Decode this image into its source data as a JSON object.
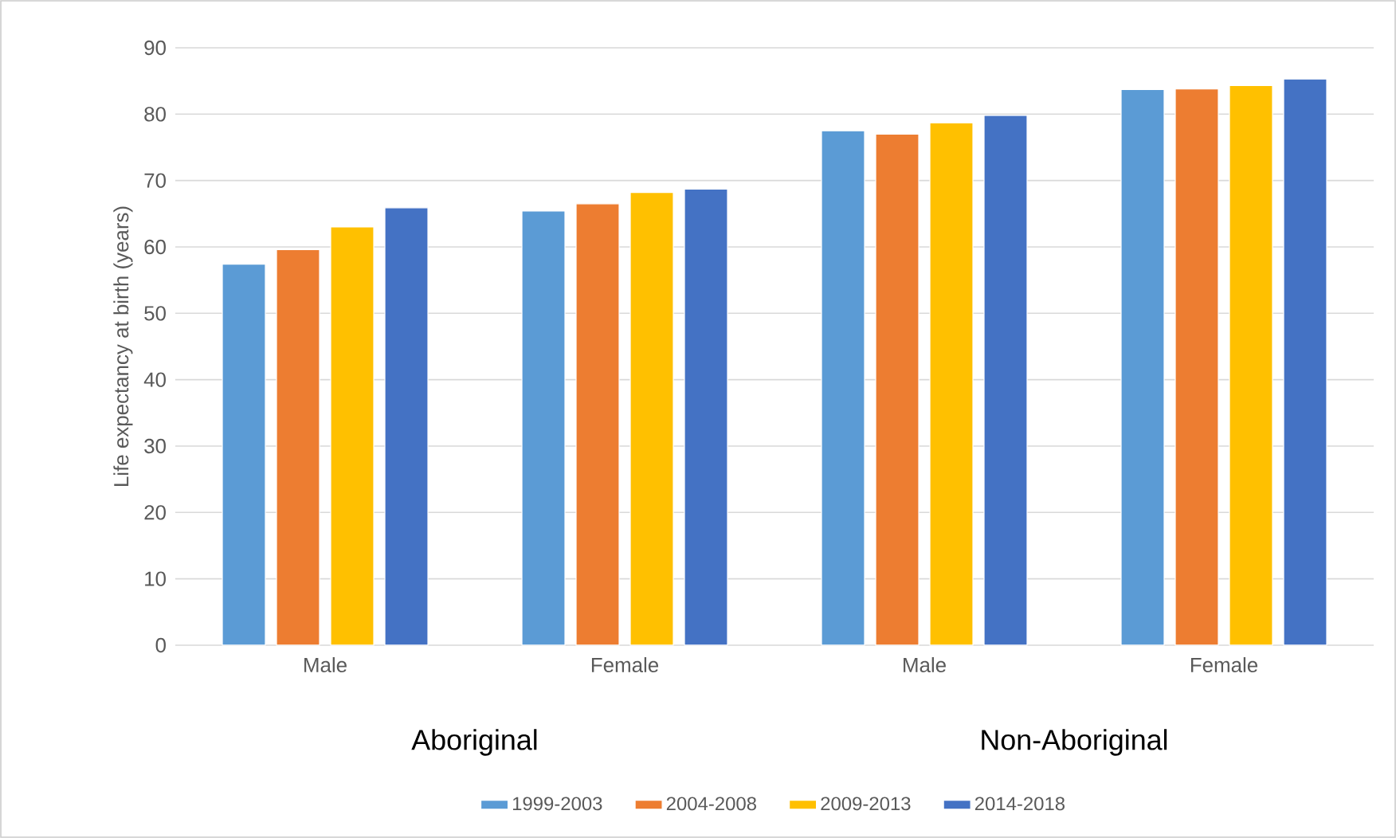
{
  "chart_data": {
    "type": "bar",
    "ylabel": "Life expectancy at birth (years)",
    "categories": [
      "Male",
      "Female",
      "Male",
      "Female"
    ],
    "annotations": [
      "Aboriginal",
      "Non-Aboriginal"
    ],
    "series": [
      {
        "name": "1999-2003",
        "color": "#5b9bd5",
        "values": [
          57.4,
          65.4,
          77.5,
          83.7
        ]
      },
      {
        "name": "2004-2008",
        "color": "#ed7d31",
        "values": [
          59.6,
          66.5,
          77.0,
          83.8
        ]
      },
      {
        "name": "2009-2013",
        "color": "#ffc000",
        "values": [
          63.0,
          68.2,
          78.7,
          84.3
        ]
      },
      {
        "name": "2014-2018",
        "color": "#4472c4",
        "values": [
          65.9,
          68.7,
          79.8,
          85.3
        ]
      }
    ],
    "ylim": [
      0,
      90
    ],
    "yticks": [
      0,
      10,
      20,
      30,
      40,
      50,
      60,
      70,
      80,
      90
    ],
    "grid": "y",
    "legend": "bottom"
  }
}
